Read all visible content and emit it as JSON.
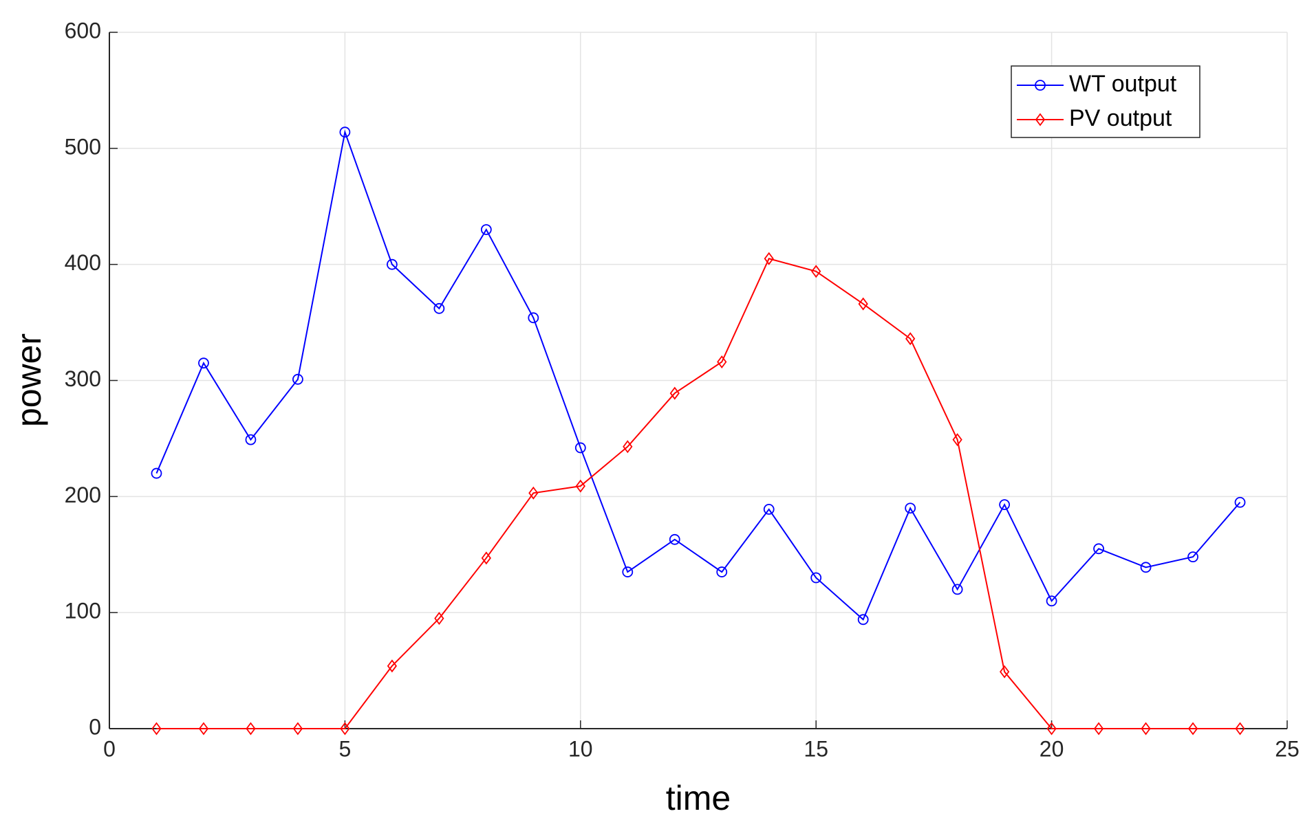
{
  "chart_data": {
    "type": "line",
    "xlabel": "time",
    "ylabel": "power",
    "x": [
      1,
      2,
      3,
      4,
      5,
      6,
      7,
      8,
      9,
      10,
      11,
      12,
      13,
      14,
      15,
      16,
      17,
      18,
      19,
      20,
      21,
      22,
      23,
      24
    ],
    "series": [
      {
        "name": "WT output",
        "color": "#0000ff",
        "marker": "circle",
        "values": [
          220,
          315,
          249,
          301,
          514,
          400,
          362,
          430,
          354,
          242,
          135,
          163,
          135,
          189,
          130,
          94,
          190,
          120,
          193,
          110,
          155,
          139,
          148,
          195
        ]
      },
      {
        "name": "PV output",
        "color": "#ff0000",
        "marker": "diamond",
        "values": [
          0,
          0,
          0,
          0,
          0,
          54,
          95,
          147,
          203,
          209,
          243,
          289,
          316,
          405,
          394,
          366,
          336,
          249,
          49,
          0,
          0,
          0,
          0,
          0
        ]
      }
    ],
    "xlim": [
      0,
      25
    ],
    "xticks": [
      0,
      5,
      10,
      15,
      20,
      25
    ],
    "ylim": [
      0,
      600
    ],
    "yticks": [
      0,
      100,
      200,
      300,
      400,
      500,
      600
    ],
    "grid": true,
    "legend": "northeast"
  }
}
